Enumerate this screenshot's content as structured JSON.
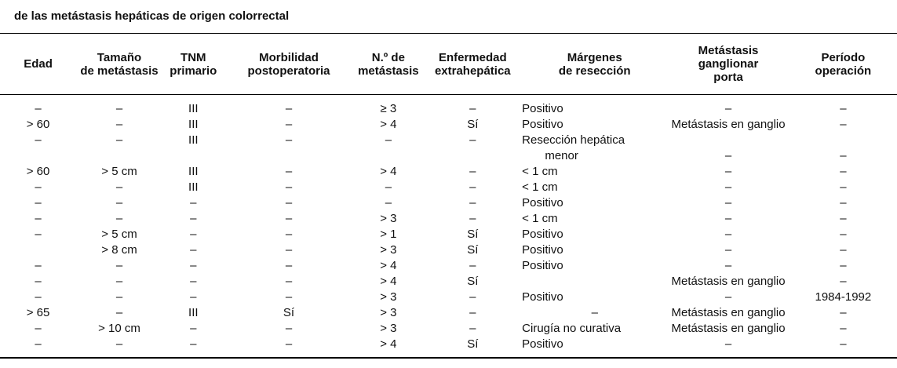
{
  "caption": "de las metástasis hepáticas de origen colorrectal",
  "table": {
    "columns": [
      {
        "label": "Edad",
        "align": "center"
      },
      {
        "label": "Tamaño\nde metástasis",
        "align": "center"
      },
      {
        "label": "TNM\nprimario",
        "align": "center"
      },
      {
        "label": "Morbilidad\npostoperatoria",
        "align": "center"
      },
      {
        "label": "N.º de\nmetástasis",
        "align": "center"
      },
      {
        "label": "Enfermedad\nextrahepática",
        "align": "center"
      },
      {
        "label": "Márgenes\nde resección",
        "align": "left"
      },
      {
        "label": "Metástasis\nganglionar\nporta",
        "align": "center"
      },
      {
        "label": "Período\noperación",
        "align": "center"
      }
    ],
    "rows": [
      {
        "cells": [
          "–",
          "–",
          "III",
          "–",
          "≥ 3",
          "–",
          "Positivo",
          "–",
          "–"
        ]
      },
      {
        "cells": [
          "> 60",
          "–",
          "III",
          "–",
          "> 4",
          "Sí",
          "Positivo",
          "Metástasis en ganglio",
          "–"
        ]
      },
      {
        "cells": [
          "–",
          "–",
          "III",
          "–",
          "–",
          "–",
          "Resección hepática\n       menor",
          "–",
          "–"
        ]
      },
      {
        "cells": [
          "> 60",
          "> 5 cm",
          "III",
          "–",
          "> 4",
          "–",
          "< 1 cm",
          "–",
          "–"
        ]
      },
      {
        "cells": [
          "–",
          "–",
          "III",
          "–",
          "–",
          "–",
          "< 1 cm",
          "–",
          "–"
        ]
      },
      {
        "cells": [
          "–",
          "–",
          "–",
          "–",
          "–",
          "–",
          "Positivo",
          "–",
          "–"
        ]
      },
      {
        "cells": [
          "–",
          "–",
          "–",
          "–",
          "> 3",
          "–",
          "< 1 cm",
          "–",
          "–"
        ]
      },
      {
        "cells": [
          "–",
          "> 5 cm",
          "–",
          "–",
          "> 1",
          "Sí",
          "Positivo",
          "–",
          "–"
        ]
      },
      {
        "cells": [
          "",
          "> 8 cm",
          "–",
          "–",
          "> 3",
          "Sí",
          "Positivo",
          "–",
          "–"
        ]
      },
      {
        "cells": [
          "–",
          "–",
          "–",
          "–",
          "> 4",
          "–",
          "Positivo",
          "–",
          "–"
        ]
      },
      {
        "cells": [
          "–",
          "–",
          "–",
          "–",
          "> 4",
          "Sí",
          "",
          "Metástasis en ganglio",
          "–"
        ]
      },
      {
        "cells": [
          "–",
          "–",
          "–",
          "–",
          "> 3",
          "–",
          "Positivo",
          "–",
          "1984-1992"
        ]
      },
      {
        "cells": [
          "> 65",
          "–",
          "III",
          "Sí",
          "> 3",
          "–",
          "–",
          "Metástasis en ganglio",
          "–"
        ]
      },
      {
        "cells": [
          "–",
          "> 10 cm",
          "–",
          "–",
          "> 3",
          "–",
          "Cirugía no curativa",
          "Metástasis en ganglio",
          "–"
        ]
      },
      {
        "cells": [
          "–",
          "–",
          "–",
          "–",
          "> 4",
          "Sí",
          "Positivo",
          "–",
          "–"
        ]
      }
    ]
  }
}
